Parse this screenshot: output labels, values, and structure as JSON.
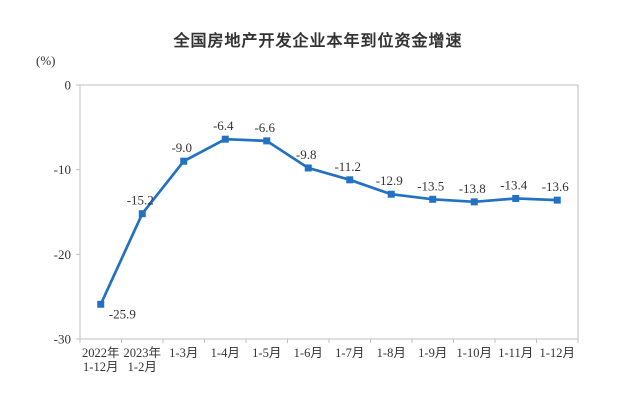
{
  "chart_data": {
    "type": "line",
    "title": "全国房地产开发企业本年到位资金增速",
    "ylabel": "(%)",
    "xlabel": "",
    "categories": [
      "2022年\n1-12月",
      "2023年\n1-2月",
      "1-3月",
      "1-4月",
      "1-5月",
      "1-6月",
      "1-7月",
      "1-8月",
      "1-9月",
      "1-10月",
      "1-11月",
      "1-12月"
    ],
    "values": [
      -25.9,
      -15.2,
      -9.0,
      -6.4,
      -6.6,
      -9.8,
      -11.2,
      -12.9,
      -13.5,
      -13.8,
      -13.4,
      -13.6
    ],
    "data_labels": [
      "-25.9",
      "-15.2",
      "-9.0",
      "-6.4",
      "-6.6",
      "-9.8",
      "-11.2",
      "-12.9",
      "-13.5",
      "-13.8",
      "-13.4",
      "-13.6"
    ],
    "ylim": [
      -30,
      0
    ],
    "yticks": [
      0,
      -10,
      -20,
      -30
    ],
    "grid": false,
    "legend_position": "none",
    "line_color": "#2271c3",
    "marker": "square",
    "axis_color": "#bfbfbf",
    "text_color": "#333333"
  }
}
